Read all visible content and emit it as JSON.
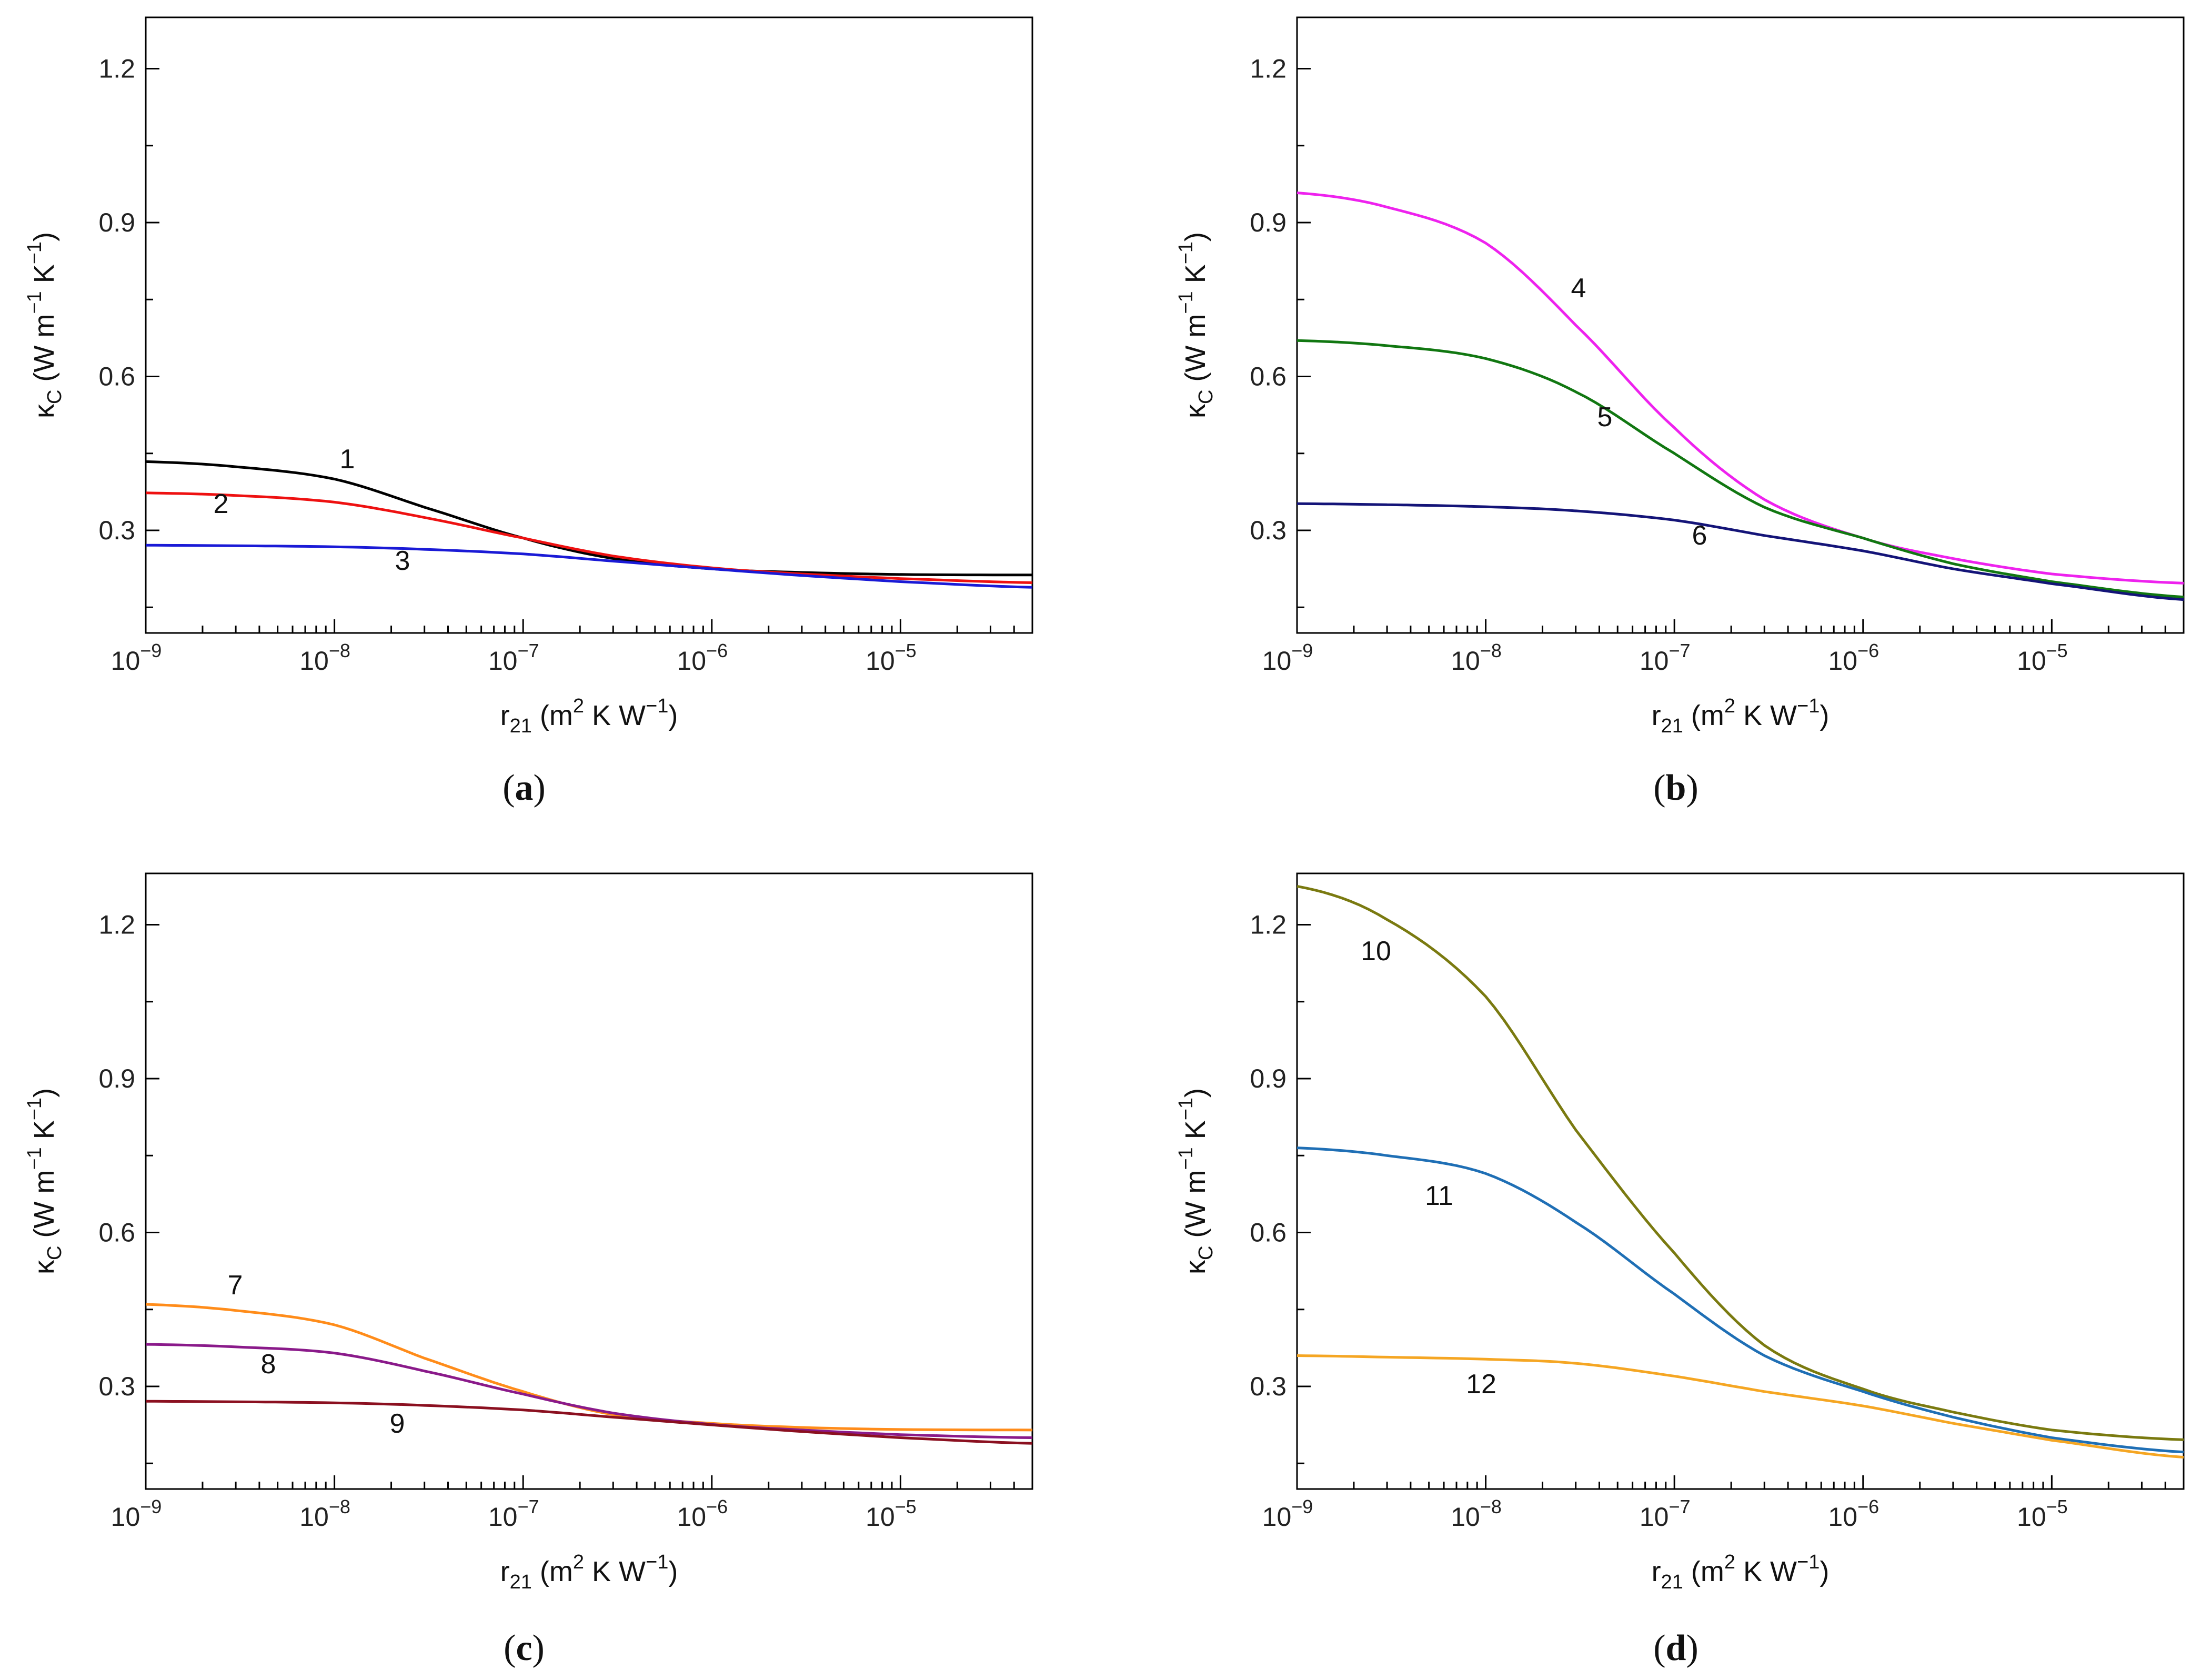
{
  "figure": {
    "y_tick_labels": [
      "0.3",
      "0.6",
      "0.9",
      "1.2"
    ],
    "x_tick_labels": [
      {
        "base": "10",
        "exp": "−9"
      },
      {
        "base": "10",
        "exp": "−8"
      },
      {
        "base": "10",
        "exp": "−7"
      },
      {
        "base": "10",
        "exp": "−6"
      },
      {
        "base": "10",
        "exp": "−5"
      }
    ],
    "ylabel": {
      "kappa": "κ",
      "sub": "C",
      "open": " (W m",
      "sup1": "−1",
      "mid": " K",
      "sup2": "−1",
      "close": ")"
    },
    "xlabel": {
      "r": "r",
      "sub": "21",
      "open": " (m",
      "sup1": "2",
      "mid": " K  W",
      "sup2": "−1",
      "close": ")"
    }
  },
  "chart_data": [
    {
      "type": "line",
      "panel": "a",
      "title": "",
      "xlabel": "r21 (m2 K W−1)",
      "ylabel": "κC (W m−1 K−1)",
      "xscale": "log",
      "xlim": [
        1e-09,
        5e-05
      ],
      "ylim": [
        0.1,
        1.3
      ],
      "x": [
        1e-09,
        3e-09,
        1e-08,
        3e-08,
        1e-07,
        3e-07,
        1e-06,
        3e-06,
        1e-05,
        5e-05
      ],
      "series": [
        {
          "name": "1",
          "color": "#000000",
          "values": [
            0.434,
            0.424,
            0.4,
            0.345,
            0.285,
            0.245,
            0.225,
            0.218,
            0.214,
            0.213
          ]
        },
        {
          "name": "2",
          "color": "#ee1111",
          "values": [
            0.373,
            0.368,
            0.355,
            0.325,
            0.285,
            0.25,
            0.227,
            0.215,
            0.206,
            0.198
          ]
        },
        {
          "name": "3",
          "color": "#1a1ad6",
          "values": [
            0.271,
            0.27,
            0.268,
            0.263,
            0.254,
            0.24,
            0.225,
            0.212,
            0.2,
            0.189
          ]
        }
      ]
    },
    {
      "type": "line",
      "panel": "b",
      "title": "",
      "xlabel": "r21 (m2 K W−1)",
      "ylabel": "κC (W m−1 K−1)",
      "xscale": "log",
      "xlim": [
        1e-09,
        5e-05
      ],
      "ylim": [
        0.1,
        1.3
      ],
      "x": [
        1e-09,
        3e-09,
        1e-08,
        3e-08,
        1e-07,
        3e-07,
        1e-06,
        3e-06,
        1e-05,
        5e-05
      ],
      "series": [
        {
          "name": "4",
          "color": "#ee22ee",
          "values": [
            0.958,
            0.93,
            0.86,
            0.7,
            0.5,
            0.36,
            0.285,
            0.245,
            0.215,
            0.197
          ]
        },
        {
          "name": "5",
          "color": "#117711",
          "values": [
            0.67,
            0.66,
            0.635,
            0.57,
            0.45,
            0.345,
            0.285,
            0.235,
            0.2,
            0.17
          ]
        },
        {
          "name": "6",
          "color": "#141478",
          "values": [
            0.352,
            0.35,
            0.346,
            0.338,
            0.32,
            0.29,
            0.26,
            0.225,
            0.196,
            0.165
          ]
        }
      ]
    },
    {
      "type": "line",
      "panel": "c",
      "title": "",
      "xlabel": "r21 (m2 K W−1)",
      "ylabel": "κC (W m−1 K−1)",
      "xscale": "log",
      "xlim": [
        1e-09,
        5e-05
      ],
      "ylim": [
        0.1,
        1.3
      ],
      "x": [
        1e-09,
        3e-09,
        1e-08,
        3e-08,
        1e-07,
        3e-07,
        1e-06,
        3e-06,
        1e-05,
        5e-05
      ],
      "series": [
        {
          "name": "7",
          "color": "#ff8c1a",
          "values": [
            0.46,
            0.448,
            0.42,
            0.355,
            0.29,
            0.245,
            0.228,
            0.22,
            0.216,
            0.215
          ]
        },
        {
          "name": "8",
          "color": "#8a1a8a",
          "values": [
            0.382,
            0.377,
            0.365,
            0.33,
            0.285,
            0.248,
            0.226,
            0.215,
            0.206,
            0.2
          ]
        },
        {
          "name": "9",
          "color": "#8b1020",
          "values": [
            0.271,
            0.27,
            0.268,
            0.263,
            0.254,
            0.24,
            0.225,
            0.212,
            0.2,
            0.189
          ]
        }
      ]
    },
    {
      "type": "line",
      "panel": "d",
      "title": "",
      "xlabel": "r21 (m2 K W−1)",
      "ylabel": "κC (W m−1 K−1)",
      "xscale": "log",
      "xlim": [
        1e-09,
        5e-05
      ],
      "ylim": [
        0.1,
        1.3
      ],
      "x": [
        1e-09,
        3e-09,
        1e-08,
        3e-08,
        1e-07,
        3e-07,
        1e-06,
        3e-06,
        1e-05,
        5e-05
      ],
      "series": [
        {
          "name": "10",
          "color": "#7a7a10",
          "values": [
            1.275,
            1.21,
            1.06,
            0.8,
            0.56,
            0.38,
            0.295,
            0.25,
            0.215,
            0.196
          ]
        },
        {
          "name": "11",
          "color": "#1f6fb5",
          "values": [
            0.765,
            0.75,
            0.715,
            0.62,
            0.48,
            0.36,
            0.29,
            0.24,
            0.2,
            0.172
          ]
        },
        {
          "name": "12",
          "color": "#f5a623",
          "values": [
            0.36,
            0.357,
            0.353,
            0.345,
            0.32,
            0.29,
            0.262,
            0.228,
            0.195,
            0.162
          ]
        }
      ]
    }
  ]
}
